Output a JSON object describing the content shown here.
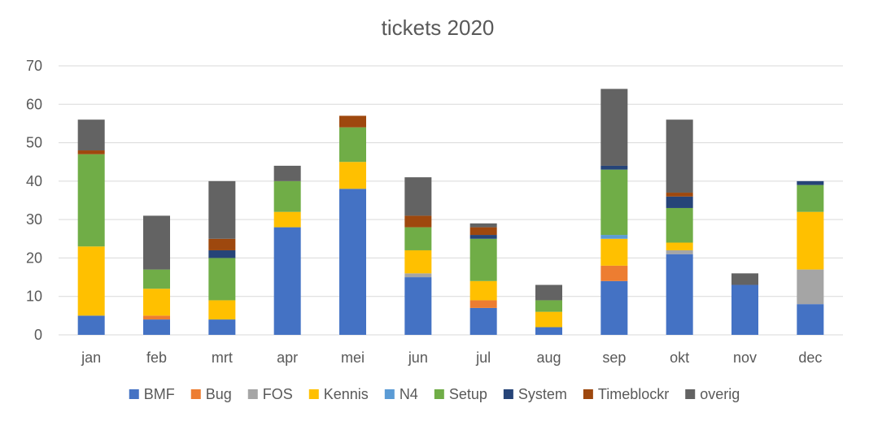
{
  "chart_data": {
    "type": "bar",
    "stacked": true,
    "title": "tickets 2020",
    "xlabel": "",
    "ylabel": "",
    "ylim": [
      0,
      70
    ],
    "yticks": [
      0,
      10,
      20,
      30,
      40,
      50,
      60,
      70
    ],
    "grid": true,
    "legend_position": "bottom",
    "categories": [
      "jan",
      "feb",
      "mrt",
      "apr",
      "mei",
      "jun",
      "jul",
      "aug",
      "sep",
      "okt",
      "nov",
      "dec"
    ],
    "series": [
      {
        "name": "BMF",
        "color": "#4472C4",
        "values": [
          5,
          4,
          4,
          28,
          38,
          15,
          7,
          2,
          14,
          21,
          13,
          8
        ]
      },
      {
        "name": "Bug",
        "color": "#ED7D31",
        "values": [
          0,
          1,
          0,
          0,
          0,
          0,
          2,
          0,
          4,
          0,
          0,
          0
        ]
      },
      {
        "name": "FOS",
        "color": "#A5A5A5",
        "values": [
          0,
          0,
          0,
          0,
          0,
          1,
          0,
          0,
          0,
          1,
          0,
          9
        ]
      },
      {
        "name": "Kennis",
        "color": "#FFC000",
        "values": [
          18,
          7,
          5,
          4,
          7,
          6,
          5,
          4,
          7,
          2,
          0,
          15
        ]
      },
      {
        "name": "N4",
        "color": "#5B9BD5",
        "values": [
          0,
          0,
          0,
          0,
          0,
          0,
          0,
          0,
          1,
          0,
          0,
          0
        ]
      },
      {
        "name": "Setup",
        "color": "#70AD47",
        "values": [
          24,
          5,
          11,
          8,
          9,
          6,
          11,
          3,
          17,
          9,
          0,
          7
        ]
      },
      {
        "name": "System",
        "color": "#264478",
        "values": [
          0,
          0,
          2,
          0,
          0,
          0,
          1,
          0,
          1,
          3,
          0,
          1
        ]
      },
      {
        "name": "Timeblockr",
        "color": "#9E480E",
        "values": [
          1,
          0,
          3,
          0,
          3,
          3,
          2,
          0,
          0,
          1,
          0,
          0
        ]
      },
      {
        "name": "overig",
        "color": "#636363",
        "values": [
          8,
          14,
          15,
          4,
          0,
          10,
          1,
          4,
          20,
          19,
          3,
          0
        ]
      }
    ]
  }
}
